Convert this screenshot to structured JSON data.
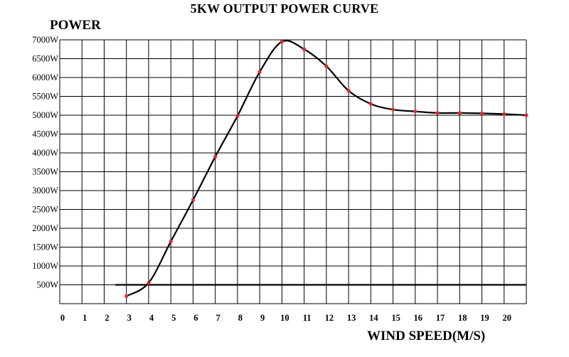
{
  "chart_data": {
    "type": "line",
    "title": "5KW OUTPUT  POWER CURVE",
    "ylabel": "POWER",
    "xlabel": "WIND SPEED(M/S)",
    "x_ticks": [
      "0",
      "1",
      "2",
      "3",
      "4",
      "5",
      "6",
      "7",
      "8",
      "9",
      "10",
      "11",
      "12",
      "13",
      "14",
      "15",
      "16",
      "17",
      "18",
      "19",
      "20"
    ],
    "y_ticks": [
      "500W",
      "1000W",
      "1500W",
      "2000W",
      "2500W",
      "3000W",
      "3500W",
      "4000W",
      "4500W",
      "5000W",
      "5500W",
      "6000W",
      "6500W",
      "7000W"
    ],
    "xlim": [
      0,
      21
    ],
    "ylim": [
      0,
      7000
    ],
    "grid": true,
    "series": [
      {
        "x": [
          3,
          4,
          5,
          6,
          7,
          8,
          9,
          10,
          11,
          12,
          13,
          14,
          15,
          16,
          17,
          18,
          19,
          20,
          21
        ],
        "values": [
          200,
          550,
          1650,
          2750,
          3900,
          4980,
          6150,
          6950,
          6750,
          6300,
          5650,
          5300,
          5150,
          5100,
          5060,
          5060,
          5050,
          5030,
          5000
        ],
        "color": "#000000",
        "marker_color": "#e8242c"
      }
    ],
    "reference_line": {
      "y": 500,
      "x_start": 2.5,
      "x_end": 21,
      "color": "#000000"
    }
  }
}
